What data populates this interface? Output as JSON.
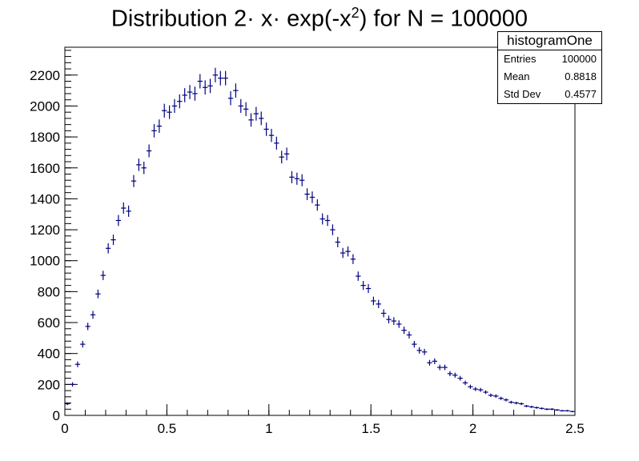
{
  "chart_data": {
    "type": "scatter",
    "title_main": "Distribution 2· x· exp(-x",
    "title_sup": "2",
    "title_tail": ") for N = 100000",
    "xlabel": "",
    "ylabel": "",
    "xlim": [
      0,
      2.5
    ],
    "ylim": [
      0,
      2380
    ],
    "x_ticks": [
      "0",
      "0.5",
      "1",
      "1.5",
      "2",
      "2.5"
    ],
    "x_tick_values": [
      0,
      0.5,
      1,
      1.5,
      2,
      2.5
    ],
    "y_ticks": [
      "0",
      "200",
      "400",
      "600",
      "800",
      "1000",
      "1200",
      "1400",
      "1600",
      "1800",
      "2000",
      "2200"
    ],
    "y_tick_values": [
      0,
      200,
      400,
      600,
      800,
      1000,
      1200,
      1400,
      1600,
      1800,
      2000,
      2200
    ],
    "bin_width": 0.025,
    "grid": false,
    "legend": "top-right stats box",
    "marker_color": "#000080",
    "series": [
      {
        "x": [
          0.0125,
          0.0375,
          0.0625,
          0.0875,
          0.1125,
          0.1375,
          0.1625,
          0.1875,
          0.2125,
          0.2375,
          0.2625,
          0.2875,
          0.3125,
          0.3375,
          0.3625,
          0.3875,
          0.4125,
          0.4375,
          0.4625,
          0.4875,
          0.5125,
          0.5375,
          0.5625,
          0.5875,
          0.6125,
          0.6375,
          0.6625,
          0.6875,
          0.7125,
          0.7375,
          0.7625,
          0.7875,
          0.8125,
          0.8375,
          0.8625,
          0.8875,
          0.9125,
          0.9375,
          0.9625,
          0.9875,
          1.0125,
          1.0375,
          1.0625,
          1.0875,
          1.1125,
          1.1375,
          1.1625,
          1.1875,
          1.2125,
          1.2375,
          1.2625,
          1.2875,
          1.3125,
          1.3375,
          1.3625,
          1.3875,
          1.4125,
          1.4375,
          1.4625,
          1.4875,
          1.5125,
          1.5375,
          1.5625,
          1.5875,
          1.6125,
          1.6375,
          1.6625,
          1.6875,
          1.7125,
          1.7375,
          1.7625,
          1.7875,
          1.8125,
          1.8375,
          1.8625,
          1.8875,
          1.9125,
          1.9375,
          1.9625,
          1.9875,
          2.0125,
          2.0375,
          2.0625,
          2.0875,
          2.1125,
          2.1375,
          2.1625,
          2.1875,
          2.2125,
          2.2375,
          2.2625,
          2.2875,
          2.3125,
          2.3375,
          2.3625,
          2.3875,
          2.4125,
          2.4375,
          2.4625,
          2.4875
        ],
        "y": [
          75,
          200,
          330,
          460,
          575,
          650,
          785,
          905,
          1080,
          1135,
          1260,
          1340,
          1320,
          1515,
          1620,
          1600,
          1710,
          1840,
          1870,
          1970,
          1960,
          2000,
          2030,
          2070,
          2090,
          2080,
          2160,
          2120,
          2130,
          2200,
          2180,
          2180,
          2050,
          2100,
          2000,
          1980,
          1910,
          1950,
          1920,
          1850,
          1810,
          1760,
          1670,
          1690,
          1540,
          1530,
          1520,
          1430,
          1410,
          1360,
          1270,
          1260,
          1200,
          1120,
          1050,
          1060,
          1010,
          900,
          840,
          820,
          740,
          720,
          660,
          620,
          610,
          590,
          550,
          520,
          460,
          420,
          410,
          340,
          350,
          310,
          310,
          270,
          260,
          240,
          210,
          185,
          170,
          165,
          150,
          130,
          125,
          110,
          100,
          85,
          80,
          75,
          60,
          55,
          50,
          45,
          40,
          40,
          35,
          30,
          30,
          25
        ]
      }
    ]
  },
  "stats_box": {
    "name": "histogramOne",
    "rows": [
      {
        "label": "Entries",
        "value": "100000"
      },
      {
        "label": "Mean",
        "value": "0.8818"
      },
      {
        "label": "Std Dev",
        "value": "0.4577"
      }
    ]
  }
}
